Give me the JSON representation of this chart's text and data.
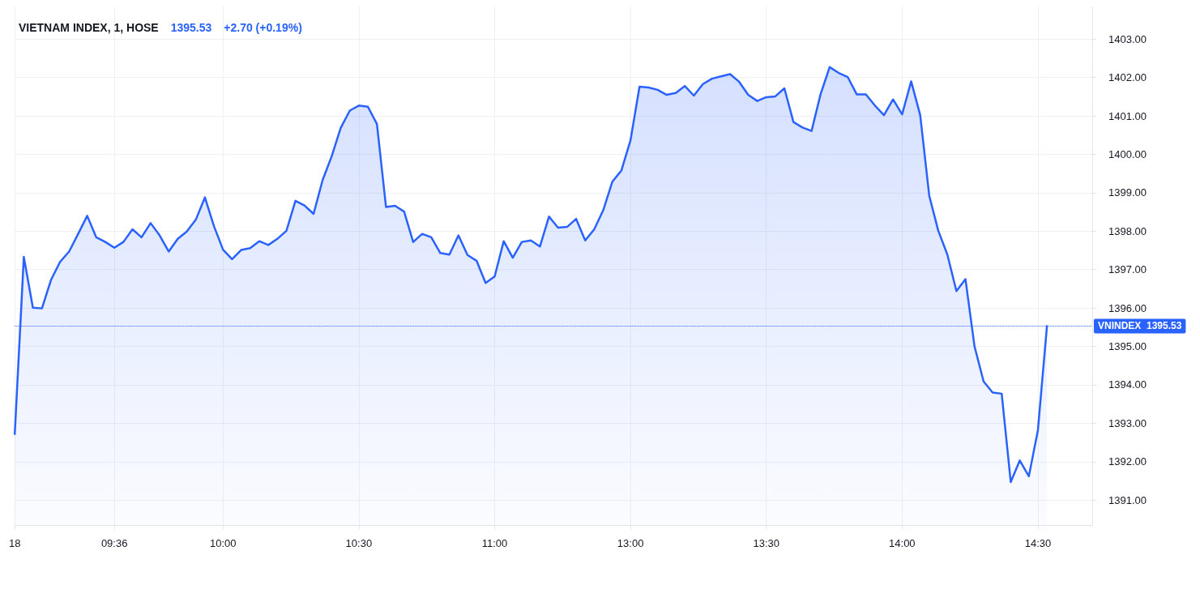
{
  "chart_data": {
    "type": "area",
    "title": "VIETNAM INDEX, 1, HOSE",
    "annotations": [
      "1395.53",
      "+2.70 (+0.19%)"
    ],
    "categories": [
      "18",
      null,
      null,
      null,
      null,
      null,
      null,
      null,
      null,
      null,
      null,
      "09:36",
      null,
      null,
      null,
      null,
      null,
      null,
      null,
      null,
      null,
      null,
      null,
      "10:00",
      null,
      null,
      null,
      null,
      null,
      null,
      null,
      null,
      null,
      null,
      null,
      null,
      null,
      null,
      "10:30",
      null,
      null,
      null,
      null,
      null,
      null,
      null,
      null,
      null,
      null,
      null,
      null,
      null,
      null,
      "11:00",
      null,
      null,
      null,
      null,
      null,
      null,
      null,
      null,
      null,
      null,
      null,
      null,
      null,
      null,
      "13:00",
      null,
      null,
      null,
      null,
      null,
      null,
      null,
      null,
      null,
      null,
      null,
      null,
      null,
      null,
      "13:30",
      null,
      null,
      null,
      null,
      null,
      null,
      null,
      null,
      null,
      null,
      null,
      null,
      null,
      null,
      "14:00",
      null,
      null,
      null,
      null,
      null,
      null,
      null,
      null,
      null,
      null,
      null,
      null,
      null,
      null,
      "14:30",
      null,
      null,
      null,
      null,
      null,
      null
    ],
    "series": [
      {
        "color": "#2962ff",
        "values": [
          1392.72,
          1397.33,
          1396.01,
          1395.99,
          1396.73,
          1397.2,
          1397.47,
          1397.93,
          1398.4,
          1397.84,
          1397.72,
          1397.57,
          1397.72,
          1398.05,
          1397.84,
          1398.21,
          1397.89,
          1397.47,
          1397.8,
          1397.99,
          1398.3,
          1398.88,
          1398.13,
          1397.52,
          1397.27,
          1397.51,
          1397.56,
          1397.74,
          1397.64,
          1397.8,
          1398.01,
          1398.79,
          1398.67,
          1398.45,
          1399.33,
          1399.95,
          1400.69,
          1401.14,
          1401.27,
          1401.24,
          1400.79,
          1398.63,
          1398.66,
          1398.51,
          1397.72,
          1397.93,
          1397.84,
          1397.43,
          1397.39,
          1397.89,
          1397.38,
          1397.23,
          1396.65,
          1396.82,
          1397.74,
          1397.31,
          1397.72,
          1397.76,
          1397.6,
          1398.38,
          1398.09,
          1398.11,
          1398.32,
          1397.76,
          1398.05,
          1398.55,
          1399.29,
          1399.58,
          1400.36,
          1401.76,
          1401.74,
          1401.68,
          1401.55,
          1401.6,
          1401.78,
          1401.53,
          1401.83,
          1401.97,
          1402.03,
          1402.09,
          1401.89,
          1401.55,
          1401.39,
          1401.49,
          1401.51,
          1401.72,
          1400.84,
          1400.7,
          1400.61,
          1401.57,
          1402.27,
          1402.12,
          1402.01,
          1401.56,
          1401.56,
          1401.27,
          1401.02,
          1401.43,
          1401.04,
          1401.9,
          1401.02,
          1398.92,
          1398.01,
          1397.39,
          1396.44,
          1396.75,
          1395.0,
          1394.09,
          1393.8,
          1393.77,
          1391.47,
          1392.03,
          1391.62,
          1392.82,
          1395.53,
          null,
          null,
          null,
          null,
          null
        ]
      }
    ],
    "ylim": [
      1390.35,
      1403.85
    ],
    "yticks": [
      {
        "value": 1391,
        "label": "1391.00"
      },
      {
        "value": 1392,
        "label": "1392.00"
      },
      {
        "value": 1393,
        "label": "1393.00"
      },
      {
        "value": 1394,
        "label": "1394.00"
      },
      {
        "value": 1395,
        "label": "1395.00"
      },
      {
        "value": 1396,
        "label": "1396.00"
      },
      {
        "value": 1397,
        "label": "1397.00"
      },
      {
        "value": 1398,
        "label": "1398.00"
      },
      {
        "value": 1399,
        "label": "1399.00"
      },
      {
        "value": 1400,
        "label": "1400.00"
      },
      {
        "value": 1401,
        "label": "1401.00"
      },
      {
        "value": 1402,
        "label": "1402.00"
      },
      {
        "value": 1403,
        "label": "1403.00"
      }
    ],
    "grid": true,
    "ref_lines": [
      {
        "axis": "y",
        "value": 1395.53,
        "label": "VNINDEX",
        "color": "#2962ff",
        "line_style": "dotted"
      }
    ]
  }
}
